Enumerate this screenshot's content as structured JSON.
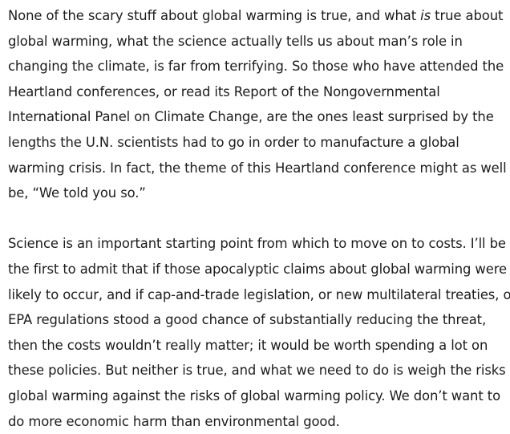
{
  "article": {
    "paragraphs": [
      {
        "lines": [
          {
            "before": "None of the scary stuff about global warming is true, and what ",
            "em": "is",
            "after": " true about"
          },
          {
            "text": "global warming, what the science actually tells us about man’s role in"
          },
          {
            "text": "changing the climate, is far from terrifying. So those who have attended the"
          },
          {
            "text": "Heartland conferences, or read its Report of the Nongovernmental"
          },
          {
            "text": "International Panel on Climate Change, are the ones least surprised by the"
          },
          {
            "text": "lengths the U.N. scientists had to go in order to manufacture a global"
          },
          {
            "text": "warming crisis. In fact, the theme of this Heartland conference might as well"
          },
          {
            "text": "be, “We told you so.”"
          }
        ]
      },
      {
        "lines": [
          {
            "text": "Science is an important starting point from which to move on to costs. I’ll be"
          },
          {
            "text": "the first to admit that if those apocalyptic claims about global warming were"
          },
          {
            "text": "likely to occur, and if cap-and-trade legislation, or new multilateral treaties, or"
          },
          {
            "text": "EPA regulations stood a good chance of substantially reducing the threat,"
          },
          {
            "text": "then the costs wouldn’t really matter; it would be worth spending a lot on"
          },
          {
            "text": "these policies. But neither is true, and what we need to do is weigh the risks of"
          },
          {
            "text": "global warming against the risks of global warming policy. We don’t want to"
          },
          {
            "text": "do more economic harm than environmental good."
          }
        ]
      }
    ]
  }
}
